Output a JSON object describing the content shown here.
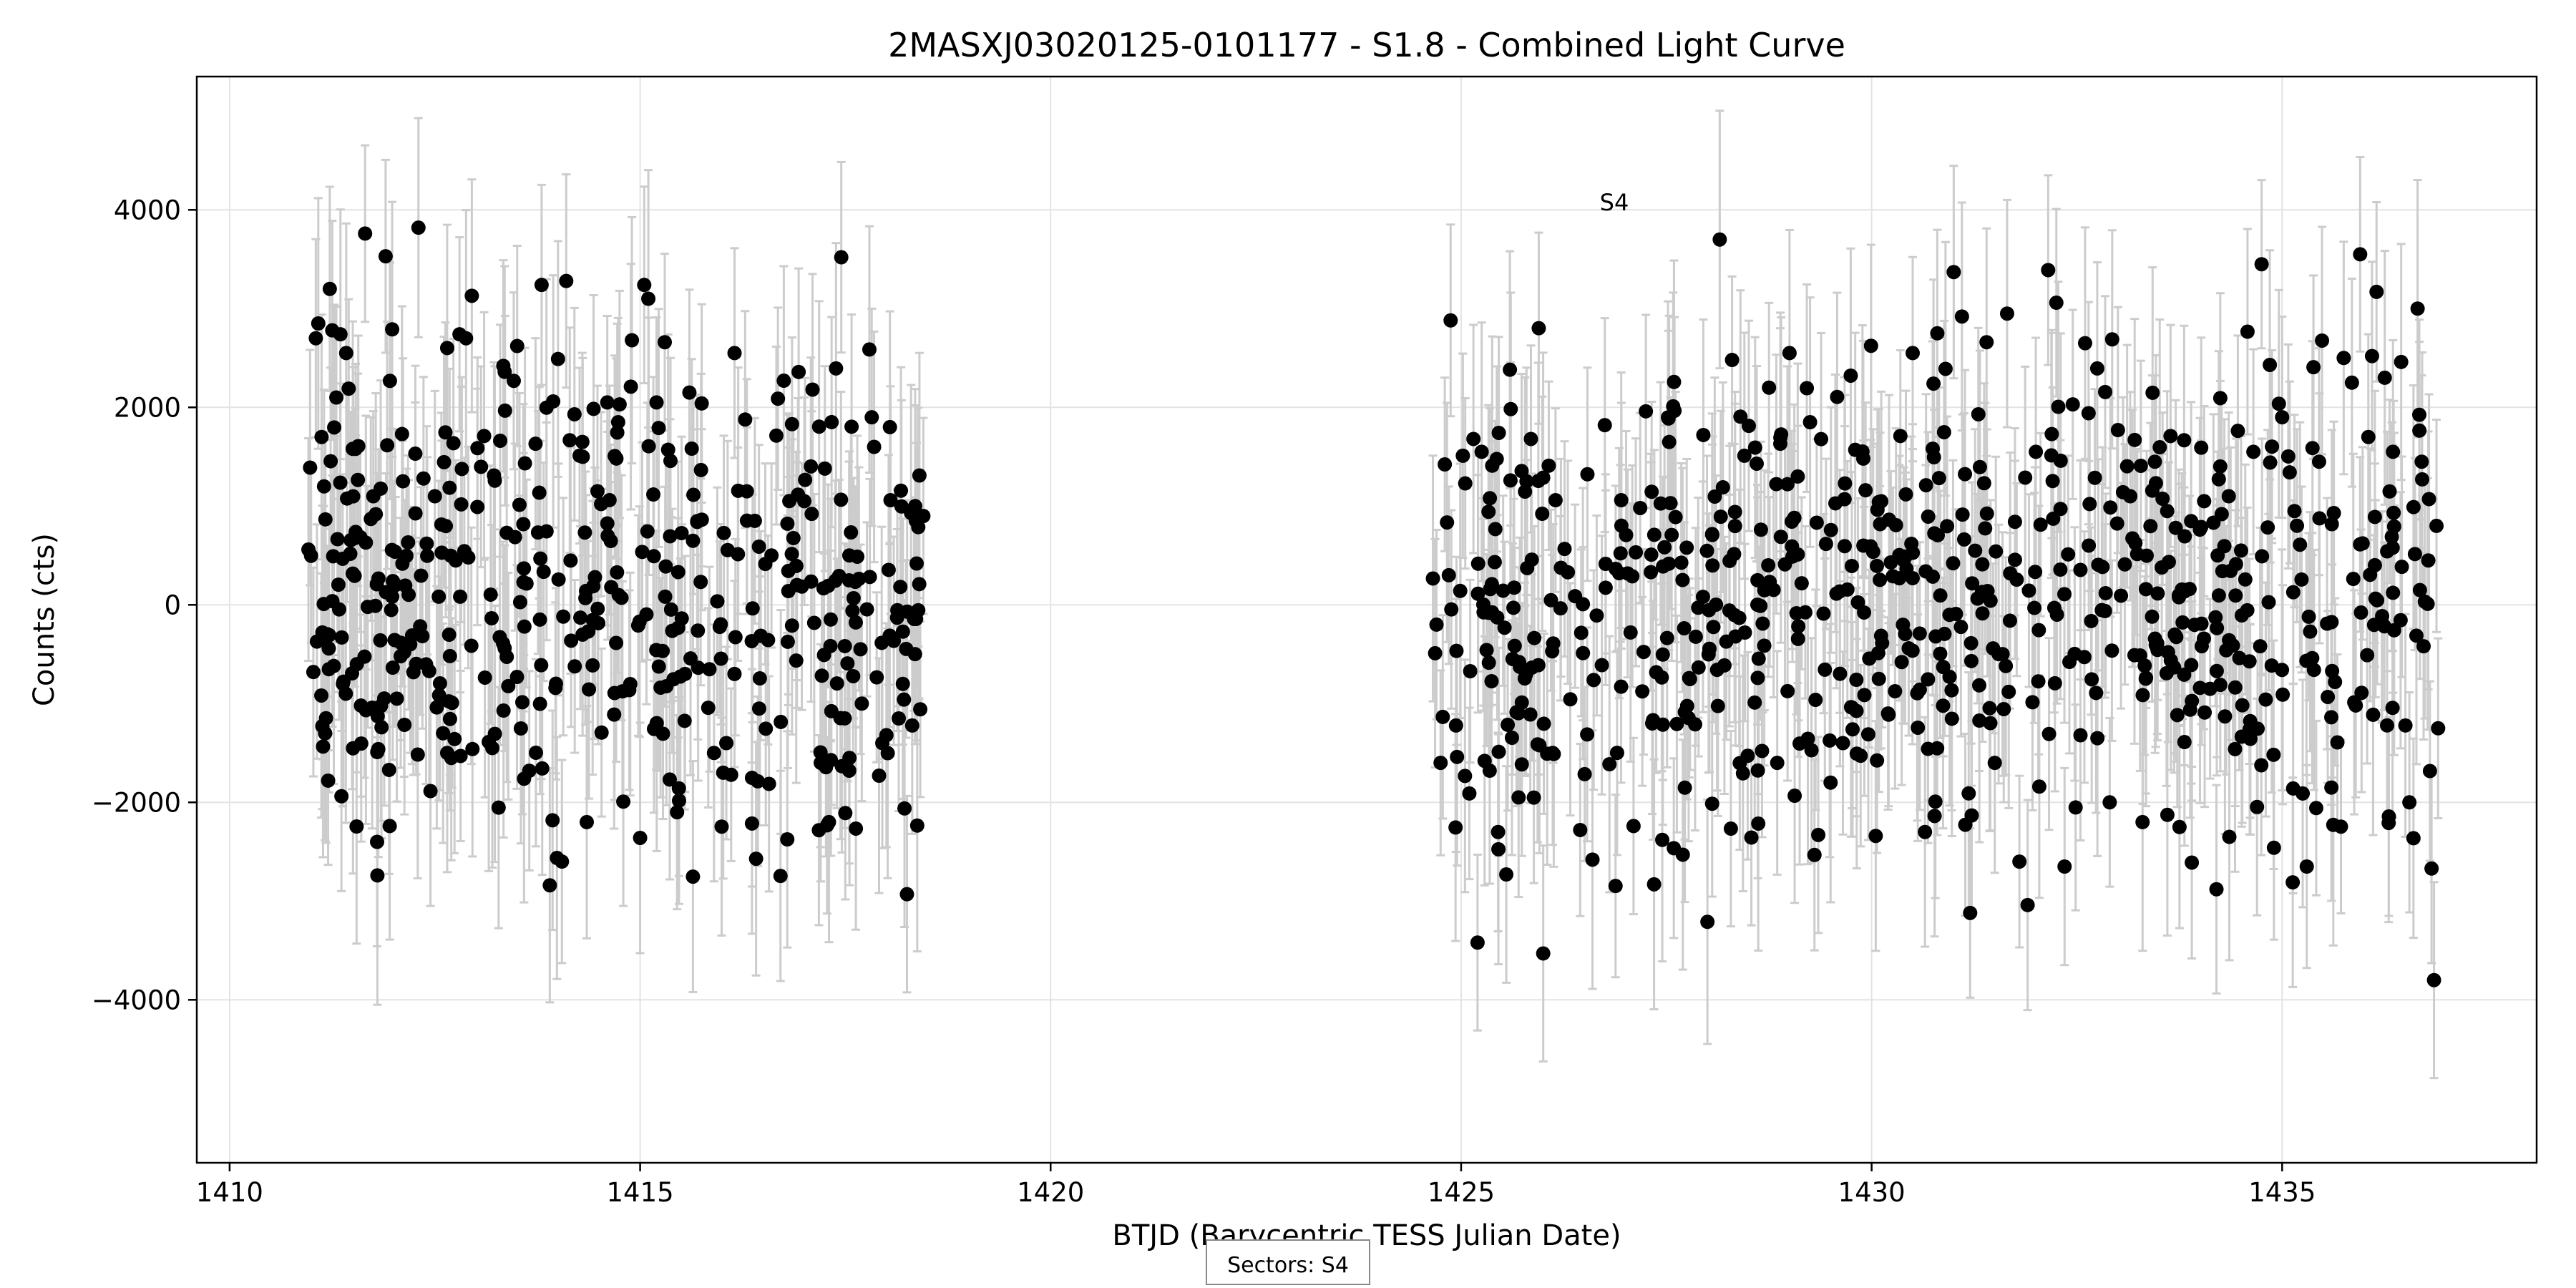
{
  "chart_data": {
    "type": "scatter",
    "title": "2MASXJ03020125-0101177 - S1.8 - Combined Light Curve",
    "xlabel": "BTJD (Barycentric TESS Julian Date)",
    "ylabel": "Counts (cts)",
    "xlim": [
      1409.6,
      1438.1
    ],
    "ylim": [
      -5650,
      5350
    ],
    "x_ticks": [
      1410,
      1415,
      1420,
      1425,
      1430,
      1435
    ],
    "x_tick_labels": [
      "1410",
      "1415",
      "1420",
      "1425",
      "1430",
      "1435"
    ],
    "y_ticks": [
      -4000,
      -2000,
      0,
      2000,
      4000
    ],
    "y_tick_labels": [
      "−4000",
      "−2000",
      "0",
      "2000",
      "4000"
    ],
    "grid": true,
    "annotations": [
      {
        "text": "S4",
        "x": 1426.9,
        "y": 4050
      }
    ],
    "legend": {
      "text": "Sectors: S4",
      "placement": "bottom-center"
    },
    "colors": {
      "points": "#000000",
      "errorbars": "#cccccc",
      "grid": "#e3e3e3"
    },
    "series": [
      {
        "segments": [
          {
            "x_start": 1410.95,
            "x_end": 1418.45,
            "count": 400
          },
          {
            "x_start": 1424.65,
            "x_end": 1436.85,
            "count": 600
          }
        ],
        "typical_error": 1050,
        "points": [
          [
            1410.96,
            560
          ],
          [
            1410.98,
            1390
          ],
          [
            1411.02,
            -680
          ],
          [
            1411.05,
            2700
          ],
          [
            1411.08,
            2850
          ],
          [
            1411.12,
            1700
          ],
          [
            1411.15,
            1200
          ],
          [
            1411.2,
            -1780
          ],
          [
            1411.22,
            3200
          ],
          [
            1411.25,
            2780
          ],
          [
            1411.3,
            2100
          ],
          [
            1411.35,
            2740
          ],
          [
            1411.38,
            -800
          ],
          [
            1411.42,
            2550
          ],
          [
            1411.45,
            2190
          ],
          [
            1411.5,
            1580
          ],
          [
            1411.55,
            -600
          ],
          [
            1411.6,
            -1020
          ],
          [
            1411.65,
            3760
          ],
          [
            1411.72,
            870
          ],
          [
            1411.75,
            1100
          ],
          [
            1411.8,
            -2740
          ],
          [
            1411.85,
            -1240
          ],
          [
            1411.9,
            3530
          ],
          [
            1411.95,
            -2240
          ],
          [
            1411.98,
            2790
          ],
          [
            1412.02,
            200
          ],
          [
            1412.1,
            1730
          ],
          [
            1412.2,
            -400
          ],
          [
            1412.3,
            3820
          ],
          [
            1412.4,
            620
          ],
          [
            1412.5,
            1100
          ],
          [
            1412.6,
            -1300
          ],
          [
            1412.65,
            -1500
          ],
          [
            1412.7,
            -1550
          ],
          [
            1412.8,
            2740
          ],
          [
            1412.88,
            2700
          ],
          [
            1412.95,
            3130
          ],
          [
            1413.1,
            1710
          ],
          [
            1413.2,
            -1450
          ],
          [
            1413.35,
            2360
          ],
          [
            1413.5,
            -730
          ],
          [
            1413.65,
            -1680
          ],
          [
            1413.8,
            3240
          ],
          [
            1413.9,
            -2840
          ],
          [
            1414.0,
            2490
          ],
          [
            1414.1,
            3280
          ],
          [
            1414.2,
            1930
          ],
          [
            1414.35,
            -2200
          ],
          [
            1414.45,
            280
          ],
          [
            1414.6,
            2050
          ],
          [
            1414.75,
            2030
          ],
          [
            1414.9,
            2680
          ],
          [
            1415.0,
            -2360
          ],
          [
            1415.05,
            3240
          ],
          [
            1415.1,
            3100
          ],
          [
            1415.2,
            2050
          ],
          [
            1415.3,
            2660
          ],
          [
            1415.45,
            -2100
          ],
          [
            1415.6,
            2150
          ],
          [
            1415.75,
            2040
          ],
          [
            1415.9,
            -1500
          ],
          [
            1416.05,
            -1400
          ],
          [
            1416.15,
            2550
          ],
          [
            1416.3,
            1150
          ],
          [
            1416.45,
            -1050
          ],
          [
            1416.6,
            500
          ],
          [
            1416.75,
            2270
          ],
          [
            1416.85,
            1830
          ],
          [
            1417.0,
            1050
          ],
          [
            1417.1,
            2180
          ],
          [
            1417.2,
            -1600
          ],
          [
            1417.25,
            1380
          ],
          [
            1417.3,
            -2200
          ],
          [
            1417.45,
            3520
          ],
          [
            1417.55,
            -1550
          ],
          [
            1417.7,
            -1000
          ],
          [
            1417.85,
            1600
          ],
          [
            1417.95,
            -1400
          ],
          [
            1418.05,
            1060
          ],
          [
            1418.15,
            -1150
          ],
          [
            1418.2,
            -800
          ],
          [
            1418.25,
            -2930
          ],
          [
            1418.3,
            930
          ],
          [
            1418.35,
            1000
          ],
          [
            1418.4,
            210
          ],
          [
            1418.45,
            900
          ],
          [
            1424.7,
            -200
          ],
          [
            1424.75,
            -1600
          ],
          [
            1424.85,
            300
          ],
          [
            1424.95,
            -1540
          ],
          [
            1425.05,
            1230
          ],
          [
            1425.1,
            -1910
          ],
          [
            1425.15,
            1680
          ],
          [
            1425.2,
            -3420
          ],
          [
            1425.25,
            1550
          ],
          [
            1425.35,
            1080
          ],
          [
            1425.45,
            -2300
          ],
          [
            1425.55,
            -2730
          ],
          [
            1425.7,
            -1950
          ],
          [
            1425.85,
            1680
          ],
          [
            1426.0,
            -3530
          ],
          [
            1426.15,
            1060
          ],
          [
            1426.3,
            330
          ],
          [
            1426.45,
            -2280
          ],
          [
            1426.6,
            -2580
          ],
          [
            1426.75,
            1820
          ],
          [
            1426.95,
            1060
          ],
          [
            1427.1,
            -2240
          ],
          [
            1427.25,
            1960
          ],
          [
            1427.35,
            -2830
          ],
          [
            1427.45,
            -2380
          ],
          [
            1427.55,
            1030
          ],
          [
            1427.7,
            -2530
          ],
          [
            1427.85,
            -1210
          ],
          [
            1427.95,
            1720
          ],
          [
            1428.0,
            -3210
          ],
          [
            1428.15,
            3700
          ],
          [
            1428.3,
            2480
          ],
          [
            1428.45,
            1510
          ],
          [
            1428.6,
            1430
          ],
          [
            1428.75,
            2200
          ],
          [
            1428.85,
            -1600
          ],
          [
            1429.0,
            2550
          ],
          [
            1429.1,
            1300
          ],
          [
            1429.25,
            1850
          ],
          [
            1429.35,
            -2330
          ],
          [
            1429.5,
            -1800
          ],
          [
            1429.65,
            -1400
          ],
          [
            1429.8,
            1570
          ],
          [
            1429.9,
            600
          ],
          [
            1430.05,
            -2340
          ],
          [
            1430.2,
            -1100
          ],
          [
            1430.35,
            1710
          ],
          [
            1430.5,
            2550
          ],
          [
            1430.65,
            -2300
          ],
          [
            1430.8,
            2750
          ],
          [
            1430.9,
            2390
          ],
          [
            1431.0,
            3370
          ],
          [
            1431.1,
            2920
          ],
          [
            1431.2,
            -3120
          ],
          [
            1431.3,
            1930
          ],
          [
            1431.4,
            2660
          ],
          [
            1431.5,
            -1600
          ],
          [
            1431.65,
            2950
          ],
          [
            1431.8,
            -2600
          ],
          [
            1431.9,
            -3040
          ],
          [
            1432.0,
            1550
          ],
          [
            1432.15,
            3390
          ],
          [
            1432.25,
            3060
          ],
          [
            1432.35,
            -2650
          ],
          [
            1432.45,
            2030
          ],
          [
            1432.6,
            2650
          ],
          [
            1432.75,
            -1350
          ],
          [
            1432.9,
            -2000
          ],
          [
            1433.0,
            1770
          ],
          [
            1433.15,
            1100
          ],
          [
            1433.3,
            -2200
          ],
          [
            1433.45,
            1450
          ],
          [
            1433.6,
            950
          ],
          [
            1433.75,
            -2250
          ],
          [
            1433.9,
            -2610
          ],
          [
            1434.05,
            1050
          ],
          [
            1434.2,
            -2880
          ],
          [
            1434.35,
            1100
          ],
          [
            1434.5,
            550
          ],
          [
            1434.65,
            1550
          ],
          [
            1434.75,
            3450
          ],
          [
            1434.85,
            2430
          ],
          [
            1434.9,
            -2460
          ],
          [
            1435.0,
            1900
          ],
          [
            1435.15,
            950
          ],
          [
            1435.3,
            -2650
          ],
          [
            1435.45,
            1450
          ],
          [
            1435.6,
            -1850
          ],
          [
            1435.75,
            2500
          ],
          [
            1435.85,
            2250
          ],
          [
            1435.95,
            3550
          ],
          [
            1436.05,
            1700
          ],
          [
            1436.15,
            3170
          ],
          [
            1436.25,
            2300
          ],
          [
            1436.35,
            1550
          ],
          [
            1436.45,
            2460
          ],
          [
            1436.55,
            -2000
          ],
          [
            1436.6,
            990
          ],
          [
            1436.65,
            3000
          ],
          [
            1436.7,
            1450
          ],
          [
            1436.78,
            450
          ],
          [
            1436.82,
            -2670
          ],
          [
            1436.85,
            -3800
          ],
          [
            1436.88,
            800
          ],
          [
            1436.9,
            -1250
          ]
        ]
      }
    ]
  }
}
